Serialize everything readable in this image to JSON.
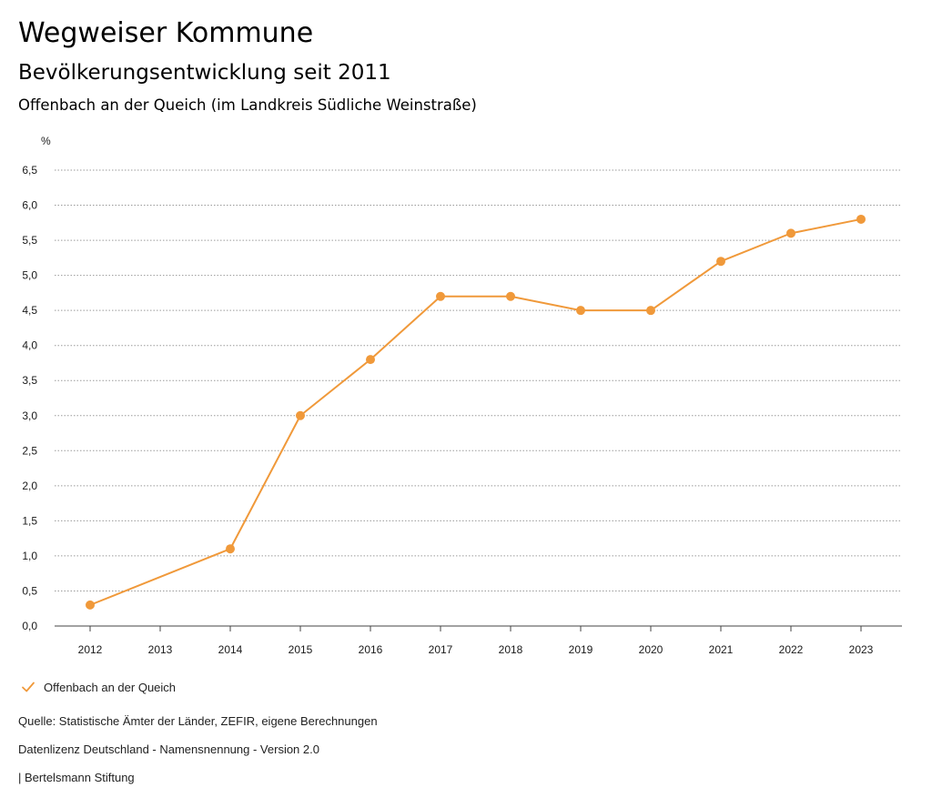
{
  "header": {
    "title": "Wegweiser Kommune",
    "subtitle": "Bevölkerungsentwicklung seit 2011",
    "location": "Offenbach an der Queich (im Landkreis Südliche Weinstraße)"
  },
  "chart_data": {
    "type": "line",
    "title": "Bevölkerungsentwicklung seit 2011",
    "subtitle": "Offenbach an der Queich (im Landkreis Südliche Weinstraße)",
    "ylabel": "%",
    "xlabel": "",
    "ylim": [
      0,
      6.5
    ],
    "ytick_step": 0.5,
    "yticks": [
      "0,0",
      "0,5",
      "1,0",
      "1,5",
      "2,0",
      "2,5",
      "3,0",
      "3,5",
      "4,0",
      "4,5",
      "5,0",
      "5,5",
      "6,0",
      "6,5"
    ],
    "categories": [
      "2012",
      "2013",
      "2014",
      "2015",
      "2016",
      "2017",
      "2018",
      "2019",
      "2020",
      "2021",
      "2022",
      "2023"
    ],
    "series": [
      {
        "name": "Offenbach an der Queich",
        "color": "#f0993a",
        "values": [
          0.3,
          null,
          1.1,
          3.0,
          3.8,
          4.7,
          4.7,
          4.5,
          4.5,
          5.2,
          5.6,
          5.8
        ]
      }
    ],
    "grid": true,
    "grid_style": "dotted",
    "legend_position": "bottom-left"
  },
  "legend": {
    "label": "Offenbach an der Queich",
    "icon": "check-icon"
  },
  "footer": {
    "source": "Quelle: Statistische Ämter der Länder, ZEFIR, eigene Berechnungen",
    "license": "Datenlizenz Deutschland - Namensnennung - Version 2.0",
    "publisher": "| Bertelsmann Stiftung"
  }
}
